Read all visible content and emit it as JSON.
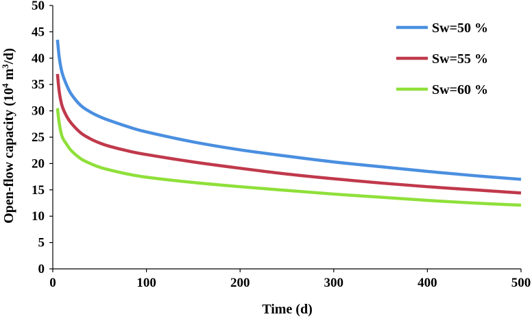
{
  "chart_data": {
    "type": "line",
    "title": "",
    "xlabel": "Time  (d)",
    "ylabel_main": "Open-flow capacity  (10",
    "ylabel_sup1": "4",
    "ylabel_mid": " m",
    "ylabel_sup2": "3",
    "ylabel_end": "/d)",
    "xlim": [
      0,
      500
    ],
    "ylim": [
      0,
      50
    ],
    "xticks": [
      0,
      100,
      200,
      300,
      400,
      500
    ],
    "yticks": [
      0,
      5,
      10,
      15,
      20,
      25,
      30,
      35,
      40,
      45,
      50
    ],
    "grid": false,
    "legend_position": "top-right",
    "x": [
      5,
      7,
      10,
      15,
      20,
      30,
      40,
      50,
      60,
      80,
      100,
      150,
      200,
      250,
      300,
      350,
      400,
      450,
      500
    ],
    "series": [
      {
        "name": "Sw=50 %",
        "color": "#4a8fe0",
        "values": [
          43.5,
          40.0,
          37.2,
          34.8,
          33.1,
          31.0,
          29.8,
          28.9,
          28.2,
          27.0,
          26.0,
          24.1,
          22.6,
          21.4,
          20.3,
          19.4,
          18.5,
          17.7,
          17.0
        ]
      },
      {
        "name": "Sw=55 %",
        "color": "#c0394b",
        "values": [
          37.0,
          33.5,
          30.9,
          28.9,
          27.6,
          25.8,
          24.7,
          23.9,
          23.3,
          22.4,
          21.7,
          20.3,
          19.1,
          18.0,
          17.1,
          16.3,
          15.6,
          15.0,
          14.4
        ]
      },
      {
        "name": "Sw=60 %",
        "color": "#8fe03a",
        "values": [
          30.5,
          27.5,
          25.1,
          23.6,
          22.4,
          20.9,
          20.0,
          19.3,
          18.8,
          18.0,
          17.4,
          16.4,
          15.6,
          14.9,
          14.2,
          13.6,
          13.0,
          12.5,
          12.1
        ]
      }
    ]
  }
}
